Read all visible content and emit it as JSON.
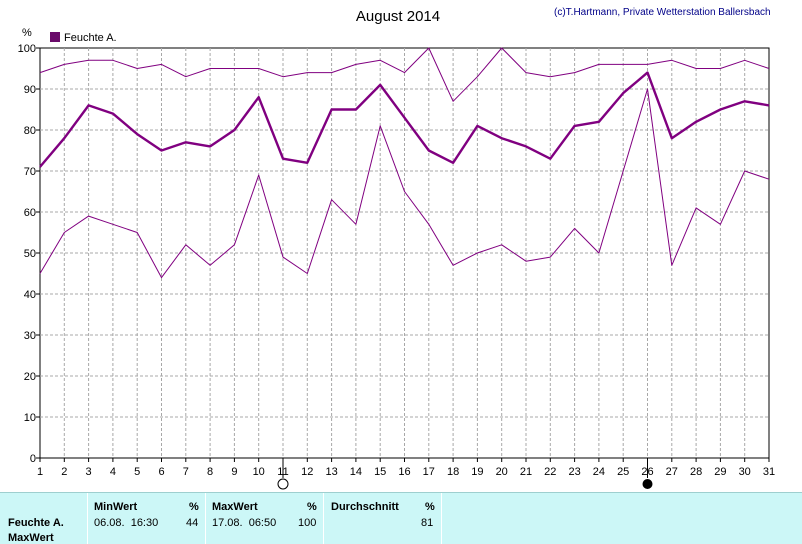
{
  "chart_data": {
    "type": "line",
    "title": "August 2014",
    "credit": "(c)T.Hartmann, Private Wetterstation Ballersbach",
    "y_unit": "%",
    "legend": "Feuchte A.",
    "legend_color": "#6a0a6a",
    "line_color": "#800080",
    "ylim": [
      0,
      100
    ],
    "yticks": [
      0,
      10,
      20,
      30,
      40,
      50,
      60,
      70,
      80,
      90,
      100
    ],
    "x": [
      1,
      2,
      3,
      4,
      5,
      6,
      7,
      8,
      9,
      10,
      11,
      12,
      13,
      14,
      15,
      16,
      17,
      18,
      19,
      20,
      21,
      22,
      23,
      24,
      25,
      26,
      27,
      28,
      29,
      30,
      31
    ],
    "grid": true,
    "moon_markers": [
      {
        "day": 11,
        "phase": "full-moon"
      },
      {
        "day": 26,
        "phase": "new-moon"
      }
    ],
    "series": [
      {
        "role": "max",
        "values": [
          94,
          96,
          97,
          97,
          95,
          96,
          93,
          95,
          95,
          95,
          93,
          94,
          94,
          96,
          97,
          94,
          100,
          87,
          93,
          100,
          94,
          93,
          94,
          96,
          96,
          96,
          97,
          95,
          95,
          97,
          95
        ]
      },
      {
        "role": "avg",
        "values": [
          71,
          78,
          86,
          84,
          79,
          75,
          77,
          76,
          80,
          88,
          73,
          72,
          85,
          85,
          91,
          83,
          75,
          72,
          81,
          78,
          76,
          73,
          81,
          82,
          89,
          94,
          78,
          82,
          85,
          87,
          86
        ]
      },
      {
        "role": "min",
        "values": [
          45,
          55,
          59,
          57,
          55,
          44,
          52,
          47,
          52,
          69,
          49,
          45,
          63,
          57,
          81,
          65,
          57,
          47,
          50,
          52,
          48,
          49,
          56,
          50,
          70,
          90,
          47,
          61,
          57,
          70,
          68
        ]
      }
    ]
  },
  "stats": {
    "row_label": "Feuchte A.",
    "row_label2": "MaxWert",
    "min_header": "MinWert",
    "min_unit": "%",
    "min_time": "06.08.  16:30",
    "min_value": "44",
    "max_header": "MaxWert",
    "max_unit": "%",
    "max_time": "17.08.  06:50",
    "max_value": "100",
    "avg_header": "Durchschnitt",
    "avg_unit": "%",
    "avg_value": "81"
  }
}
